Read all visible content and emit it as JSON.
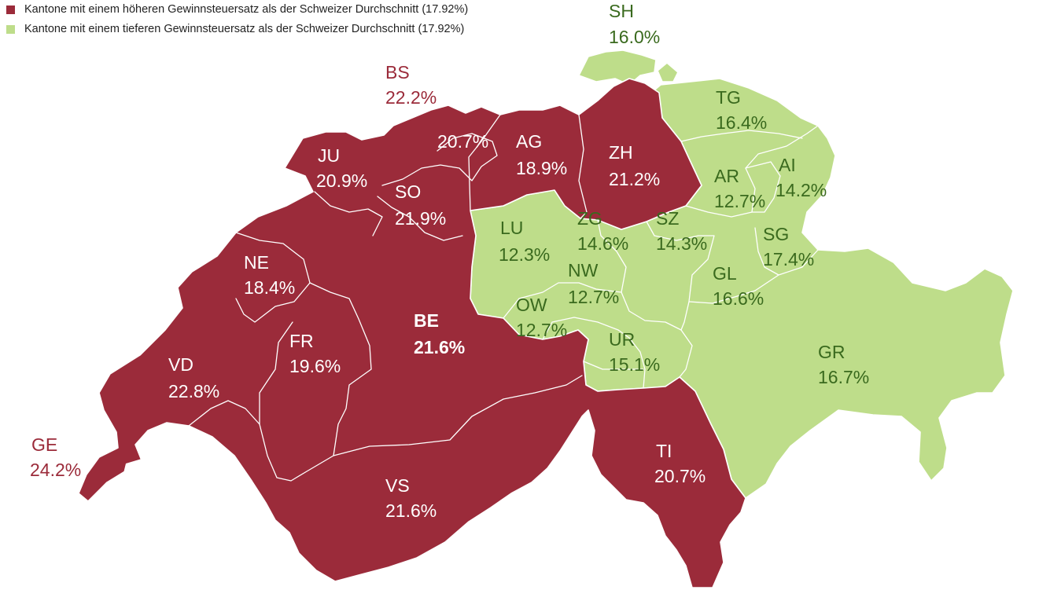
{
  "legend": {
    "higher": {
      "label": "Kantone mit einem höheren Gewinnsteuersatz als der Schweizer Durchschnitt (17.92%)",
      "color": "#9b2b3a"
    },
    "lower": {
      "label": "Kantone mit einem tieferen Gewinnsteuersatz als der Schweizer Durchschnitt (17.92%)",
      "color": "#bedd8a"
    }
  },
  "cantons": {
    "SH": {
      "name": "SH",
      "rate": "16.0%",
      "category": "lower"
    },
    "BS": {
      "name": "BS",
      "rate": "22.2%",
      "category": "higher"
    },
    "BL": {
      "name": "",
      "rate": "20.7%",
      "category": "higher"
    },
    "AG": {
      "name": "AG",
      "rate": "18.9%",
      "category": "higher"
    },
    "ZH": {
      "name": "ZH",
      "rate": "21.2%",
      "category": "higher"
    },
    "TG": {
      "name": "TG",
      "rate": "16.4%",
      "category": "lower"
    },
    "JU": {
      "name": "JU",
      "rate": "20.9%",
      "category": "higher"
    },
    "SO": {
      "name": "SO",
      "rate": "21.9%",
      "category": "higher"
    },
    "AR": {
      "name": "AR",
      "rate": "12.7%",
      "category": "lower"
    },
    "AI": {
      "name": "AI",
      "rate": "14.2%",
      "category": "lower"
    },
    "LU": {
      "name": "LU",
      "rate": "12.3%",
      "category": "lower"
    },
    "ZG": {
      "name": "ZG",
      "rate": "14.6%",
      "category": "lower"
    },
    "SZ": {
      "name": "SZ",
      "rate": "14.3%",
      "category": "lower"
    },
    "SG": {
      "name": "SG",
      "rate": "17.4%",
      "category": "lower"
    },
    "NE": {
      "name": "NE",
      "rate": "18.4%",
      "category": "higher"
    },
    "NW": {
      "name": "NW",
      "rate": "12.7%",
      "category": "lower"
    },
    "GL": {
      "name": "GL",
      "rate": "16.6%",
      "category": "lower"
    },
    "OW": {
      "name": "OW",
      "rate": "12.7%",
      "category": "lower"
    },
    "BE": {
      "name": "BE",
      "rate": "21.6%",
      "category": "higher"
    },
    "FR": {
      "name": "FR",
      "rate": "19.6%",
      "category": "higher"
    },
    "UR": {
      "name": "UR",
      "rate": "15.1%",
      "category": "lower"
    },
    "VD": {
      "name": "VD",
      "rate": "22.8%",
      "category": "higher"
    },
    "GR": {
      "name": "GR",
      "rate": "16.7%",
      "category": "lower"
    },
    "GE": {
      "name": "GE",
      "rate": "24.2%",
      "category": "higher"
    },
    "TI": {
      "name": "TI",
      "rate": "20.7%",
      "category": "higher"
    },
    "VS": {
      "name": "VS",
      "rate": "21.6%",
      "category": "higher"
    }
  }
}
